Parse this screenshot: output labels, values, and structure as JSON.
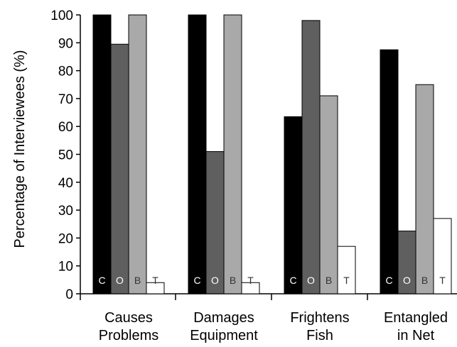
{
  "chart_data": {
    "type": "bar",
    "title": "",
    "xlabel": "",
    "ylabel": "Percentage of Interviewees (%)",
    "ylim": [
      0,
      100
    ],
    "yticks": [
      0,
      10,
      20,
      30,
      40,
      50,
      60,
      70,
      80,
      90,
      100
    ],
    "grid": false,
    "legend": "none",
    "categories": [
      [
        "Causes",
        "Problems"
      ],
      [
        "Damages",
        "Equipment"
      ],
      [
        "Frightens",
        "Fish"
      ],
      [
        "Entangled",
        "in Net"
      ]
    ],
    "series": [
      {
        "label": "C",
        "color": "#000000",
        "text_color": "#ffffff",
        "values": [
          100,
          100,
          63.5,
          87.5
        ]
      },
      {
        "label": "O",
        "color": "#5f5f5f",
        "text_color": "#ffffff",
        "values": [
          89.5,
          51,
          98,
          22.5
        ]
      },
      {
        "label": "B",
        "color": "#a9a9a9",
        "text_color": "#333333",
        "values": [
          100,
          100,
          71,
          75
        ]
      },
      {
        "label": "T",
        "color": "#ffffff",
        "text_color": "#333333",
        "values": [
          4,
          4,
          17,
          27
        ]
      }
    ]
  }
}
